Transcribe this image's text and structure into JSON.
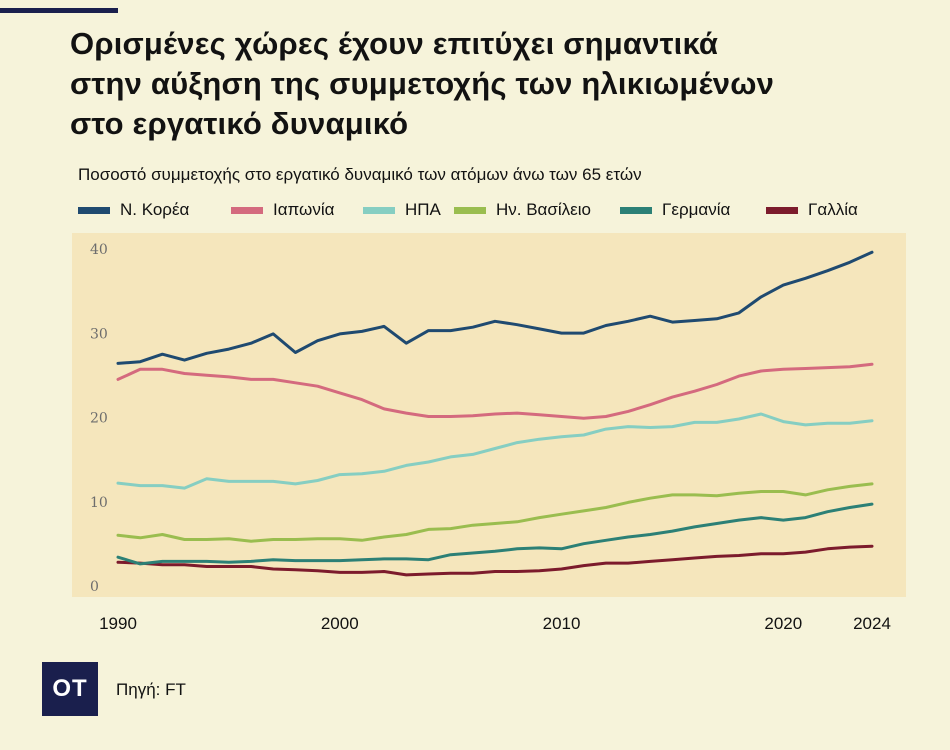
{
  "header": {
    "title_lines": [
      "Ορισμένες χώρες έχουν επιτύχει σημαντικά",
      "στην αύξηση της συμμετοχής των ηλικιωμένων",
      "στο εργατικό δυναμικό"
    ]
  },
  "footer": {
    "brand": "OT",
    "source": "Πηγή: FT"
  },
  "chart_data": {
    "type": "line",
    "title": "Ορισμένες χώρες έχουν επιτύχει σημαντικά στην αύξηση της συμμετοχής των ηλικιωμένων στο εργατικό δυναμικό",
    "subtitle": "Ποσοστό συμμετοχής στο εργατικό δυναμικό των ατόμων άνω των 65 ετών",
    "xlabel": "",
    "ylabel": "",
    "xlim": [
      1990,
      2024
    ],
    "ylim": [
      0,
      40
    ],
    "x_ticks": [
      1990,
      2000,
      2010,
      2020,
      2024
    ],
    "y_ticks": [
      0,
      10,
      20,
      30,
      40
    ],
    "grid": false,
    "legend_position": "top",
    "x": [
      1990,
      1991,
      1992,
      1993,
      1994,
      1995,
      1996,
      1997,
      1998,
      1999,
      2000,
      2001,
      2002,
      2003,
      2004,
      2005,
      2006,
      2007,
      2008,
      2009,
      2010,
      2011,
      2012,
      2013,
      2014,
      2015,
      2016,
      2017,
      2018,
      2019,
      2020,
      2021,
      2022,
      2023,
      2024
    ],
    "series": [
      {
        "name": "Ν. Κορέα",
        "color": "#1f4a70",
        "values": [
          26.3,
          26.5,
          27.4,
          26.7,
          27.5,
          28.0,
          28.7,
          29.8,
          27.6,
          29.0,
          29.8,
          30.1,
          30.7,
          28.7,
          30.2,
          30.2,
          30.6,
          31.3,
          30.9,
          30.4,
          29.9,
          29.9,
          30.8,
          31.3,
          31.9,
          31.2,
          31.4,
          31.6,
          32.3,
          34.2,
          35.6,
          36.4,
          37.3,
          38.3,
          39.5
        ]
      },
      {
        "name": "Ιαπωνία",
        "color": "#d46a7e",
        "values": [
          24.4,
          25.6,
          25.6,
          25.1,
          24.9,
          24.7,
          24.4,
          24.4,
          24.0,
          23.6,
          22.8,
          22.0,
          20.9,
          20.4,
          20.0,
          20.0,
          20.1,
          20.3,
          20.4,
          20.2,
          20.0,
          19.8,
          20.0,
          20.6,
          21.4,
          22.3,
          23.0,
          23.8,
          24.8,
          25.4,
          25.6,
          25.7,
          25.8,
          25.9,
          26.2
        ]
      },
      {
        "name": "ΗΠΑ",
        "color": "#86cec2",
        "values": [
          12.1,
          11.8,
          11.8,
          11.5,
          12.6,
          12.3,
          12.3,
          12.3,
          12.0,
          12.4,
          13.1,
          13.2,
          13.5,
          14.2,
          14.6,
          15.2,
          15.5,
          16.2,
          16.9,
          17.3,
          17.6,
          17.8,
          18.5,
          18.8,
          18.7,
          18.8,
          19.3,
          19.3,
          19.7,
          20.3,
          19.4,
          19.0,
          19.2,
          19.2,
          19.5
        ]
      },
      {
        "name": "Ην. Βασίλειο",
        "color": "#9abd4f",
        "values": [
          5.9,
          5.6,
          6.0,
          5.4,
          5.4,
          5.5,
          5.2,
          5.4,
          5.4,
          5.5,
          5.5,
          5.3,
          5.7,
          6.0,
          6.6,
          6.7,
          7.1,
          7.3,
          7.5,
          8.0,
          8.4,
          8.8,
          9.2,
          9.8,
          10.3,
          10.7,
          10.7,
          10.6,
          10.9,
          11.1,
          11.1,
          10.7,
          11.3,
          11.7,
          12.0
        ]
      },
      {
        "name": "Γερμανία",
        "color": "#2c8076",
        "values": [
          3.3,
          2.5,
          2.8,
          2.8,
          2.8,
          2.7,
          2.8,
          3.0,
          2.9,
          2.9,
          2.9,
          3.0,
          3.1,
          3.1,
          3.0,
          3.6,
          3.8,
          4.0,
          4.3,
          4.4,
          4.3,
          4.9,
          5.3,
          5.7,
          6.0,
          6.4,
          6.9,
          7.3,
          7.7,
          8.0,
          7.7,
          8.0,
          8.7,
          9.2,
          9.6
        ]
      },
      {
        "name": "Γαλλία",
        "color": "#7c1b2c",
        "values": [
          2.7,
          2.6,
          2.4,
          2.4,
          2.2,
          2.2,
          2.2,
          1.9,
          1.8,
          1.7,
          1.5,
          1.5,
          1.6,
          1.2,
          1.3,
          1.4,
          1.4,
          1.6,
          1.6,
          1.7,
          1.9,
          2.3,
          2.6,
          2.6,
          2.8,
          3.0,
          3.2,
          3.4,
          3.5,
          3.7,
          3.7,
          3.9,
          4.3,
          4.5,
          4.6
        ]
      }
    ]
  }
}
